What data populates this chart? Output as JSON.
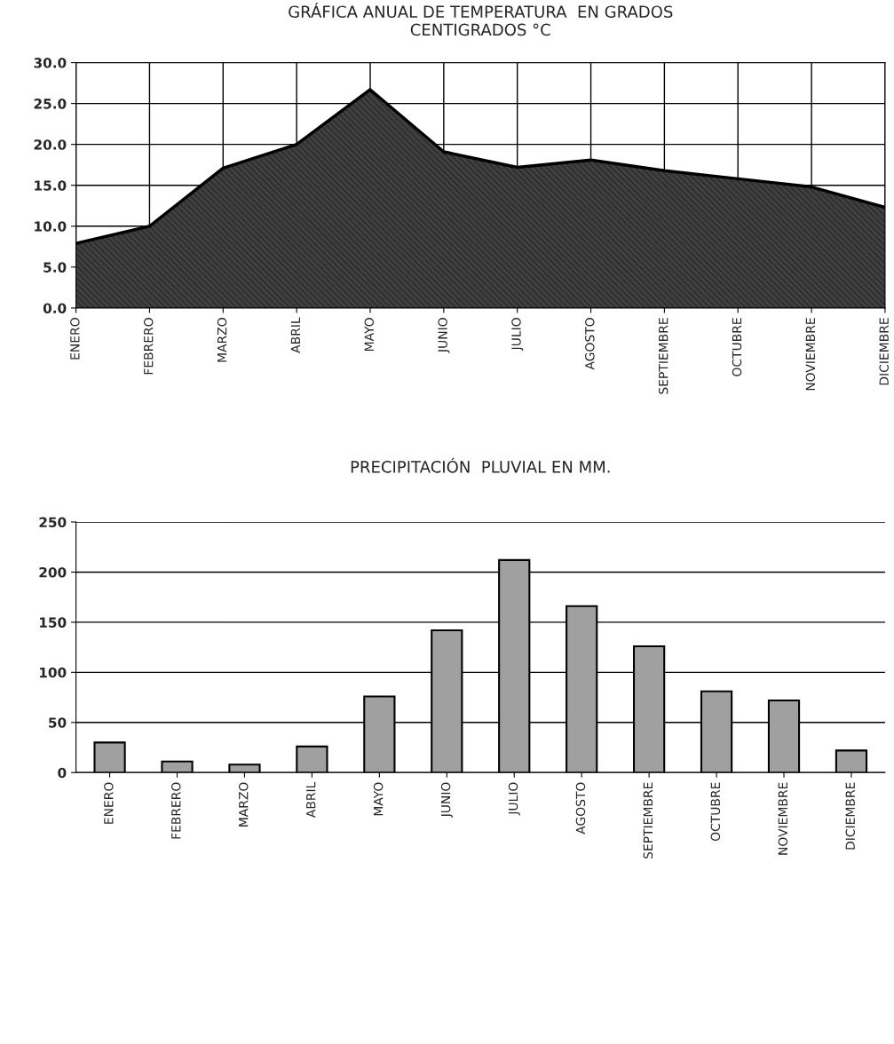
{
  "chart_data": [
    {
      "type": "area",
      "title": "GRÁFICA ANUAL DE TEMPERATURA  EN GRADOS\nCENTIGRADOS °C",
      "categories": [
        "ENERO",
        "FEBRERO",
        "MARZO",
        "ABRIL",
        "MAYO",
        "JUNIO",
        "JULIO",
        "AGOSTO",
        "SEPTIEMBRE",
        "OCTUBRE",
        "NOVIEMBRE",
        "DICIEMBRE"
      ],
      "series": [
        {
          "color": "#404040",
          "values": [
            7.9,
            10.0,
            17.1,
            20.0,
            26.7,
            19.1,
            17.2,
            18.1,
            16.8,
            15.8,
            14.8,
            12.3
          ]
        }
      ],
      "ylim": [
        0,
        30
      ],
      "yticks": [
        {
          "value": 0,
          "label": "0.0"
        },
        {
          "value": 5,
          "label": "5.0"
        },
        {
          "value": 10,
          "label": "10.0"
        },
        {
          "value": 15,
          "label": "15.0"
        },
        {
          "value": 20,
          "label": "20.0"
        },
        {
          "value": 25,
          "label": "25.0"
        },
        {
          "value": 30,
          "label": "30.0"
        }
      ],
      "grid": true,
      "legend": false
    },
    {
      "type": "bar",
      "title": "PRECIPITACIÓN  PLUVIAL EN MM.",
      "categories": [
        "ENERO",
        "FEBRERO",
        "MARZO",
        "ABRIL",
        "MAYO",
        "JUNIO",
        "JULIO",
        "AGOSTO",
        "SEPTIEMBRE",
        "OCTUBRE",
        "NOVIEMBRE",
        "DICIEMBRE"
      ],
      "series": [
        {
          "color": "#a0a0a0",
          "values": [
            30,
            11,
            8,
            26,
            76,
            142,
            212,
            166,
            126,
            81,
            72,
            22
          ]
        }
      ],
      "ylim": [
        0,
        250
      ],
      "yticks": [
        0,
        50,
        100,
        150,
        200,
        250
      ],
      "grid": "y",
      "legend": false
    }
  ]
}
